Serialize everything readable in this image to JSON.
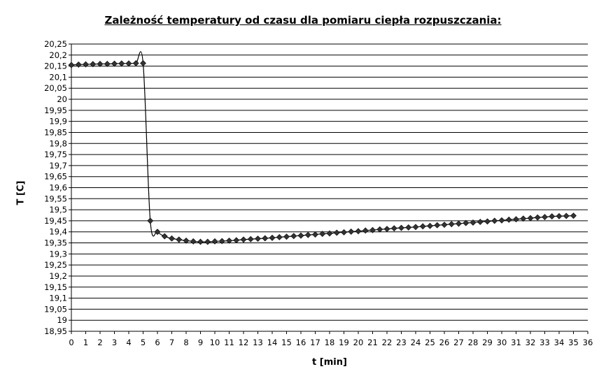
{
  "chart_data": {
    "type": "line",
    "title": "Zależność temperatury od czasu dla pomiaru ciepła rozpuszczania:",
    "xlabel": "t [min]",
    "ylabel": "T [C]",
    "xlim": [
      0,
      36
    ],
    "ylim": [
      18.95,
      20.25
    ],
    "x_ticks": [
      "0",
      "1",
      "2",
      "3",
      "4",
      "5",
      "6",
      "7",
      "8",
      "9",
      "10",
      "11",
      "12",
      "13",
      "14",
      "15",
      "16",
      "17",
      "18",
      "19",
      "20",
      "21",
      "22",
      "23",
      "24",
      "25",
      "26",
      "27",
      "28",
      "29",
      "30",
      "31",
      "32",
      "33",
      "34",
      "35",
      "36"
    ],
    "y_ticks": [
      "20,25",
      "20,2",
      "20,15",
      "20,1",
      "20,05",
      "20",
      "19,95",
      "19,9",
      "19,85",
      "19,8",
      "19,75",
      "19,7",
      "19,65",
      "19,6",
      "19,55",
      "19,5",
      "19,45",
      "19,4",
      "19,35",
      "19,3",
      "19,25",
      "19,2",
      "19,15",
      "19,1",
      "19,05",
      "19",
      "18,95"
    ],
    "grid": "horizontal",
    "marker": "diamond",
    "smoothed_line": true,
    "series": [
      {
        "x": [
          0,
          0.5,
          1,
          1.5,
          2,
          2.5,
          3,
          3.5,
          4,
          4.5,
          5,
          5.5,
          6,
          6.5,
          7,
          7.5,
          8,
          8.5,
          9,
          9.5,
          10,
          10.5,
          11,
          11.5,
          12,
          12.5,
          13,
          13.5,
          14,
          14.5,
          15,
          15.5,
          16,
          16.5,
          17,
          17.5,
          18,
          18.5,
          19,
          19.5,
          20,
          20.5,
          21,
          21.5,
          22,
          22.5,
          23,
          23.5,
          24,
          24.5,
          25,
          25.5,
          26,
          26.5,
          27,
          27.5,
          28,
          28.5,
          29,
          29.5,
          30,
          30.5,
          31,
          31.5,
          32,
          32.5,
          33,
          33.5,
          34,
          34.5,
          35
        ],
        "y": [
          20.155,
          20.157,
          20.158,
          20.159,
          20.16,
          20.16,
          20.161,
          20.162,
          20.162,
          20.163,
          20.163,
          19.45,
          19.4,
          19.38,
          19.37,
          19.365,
          19.36,
          19.357,
          19.355,
          19.355,
          19.357,
          19.358,
          19.36,
          19.362,
          19.365,
          19.367,
          19.369,
          19.371,
          19.373,
          19.376,
          19.378,
          19.381,
          19.383,
          19.386,
          19.388,
          19.391,
          19.393,
          19.396,
          19.398,
          19.401,
          19.403,
          19.406,
          19.408,
          19.411,
          19.413,
          19.416,
          19.418,
          19.42,
          19.422,
          19.425,
          19.427,
          19.43,
          19.432,
          19.435,
          19.437,
          19.44,
          19.442,
          19.445,
          19.447,
          19.45,
          19.452,
          19.455,
          19.457,
          19.46,
          19.462,
          19.465,
          19.467,
          19.47,
          19.471,
          19.472,
          19.473
        ]
      }
    ]
  }
}
